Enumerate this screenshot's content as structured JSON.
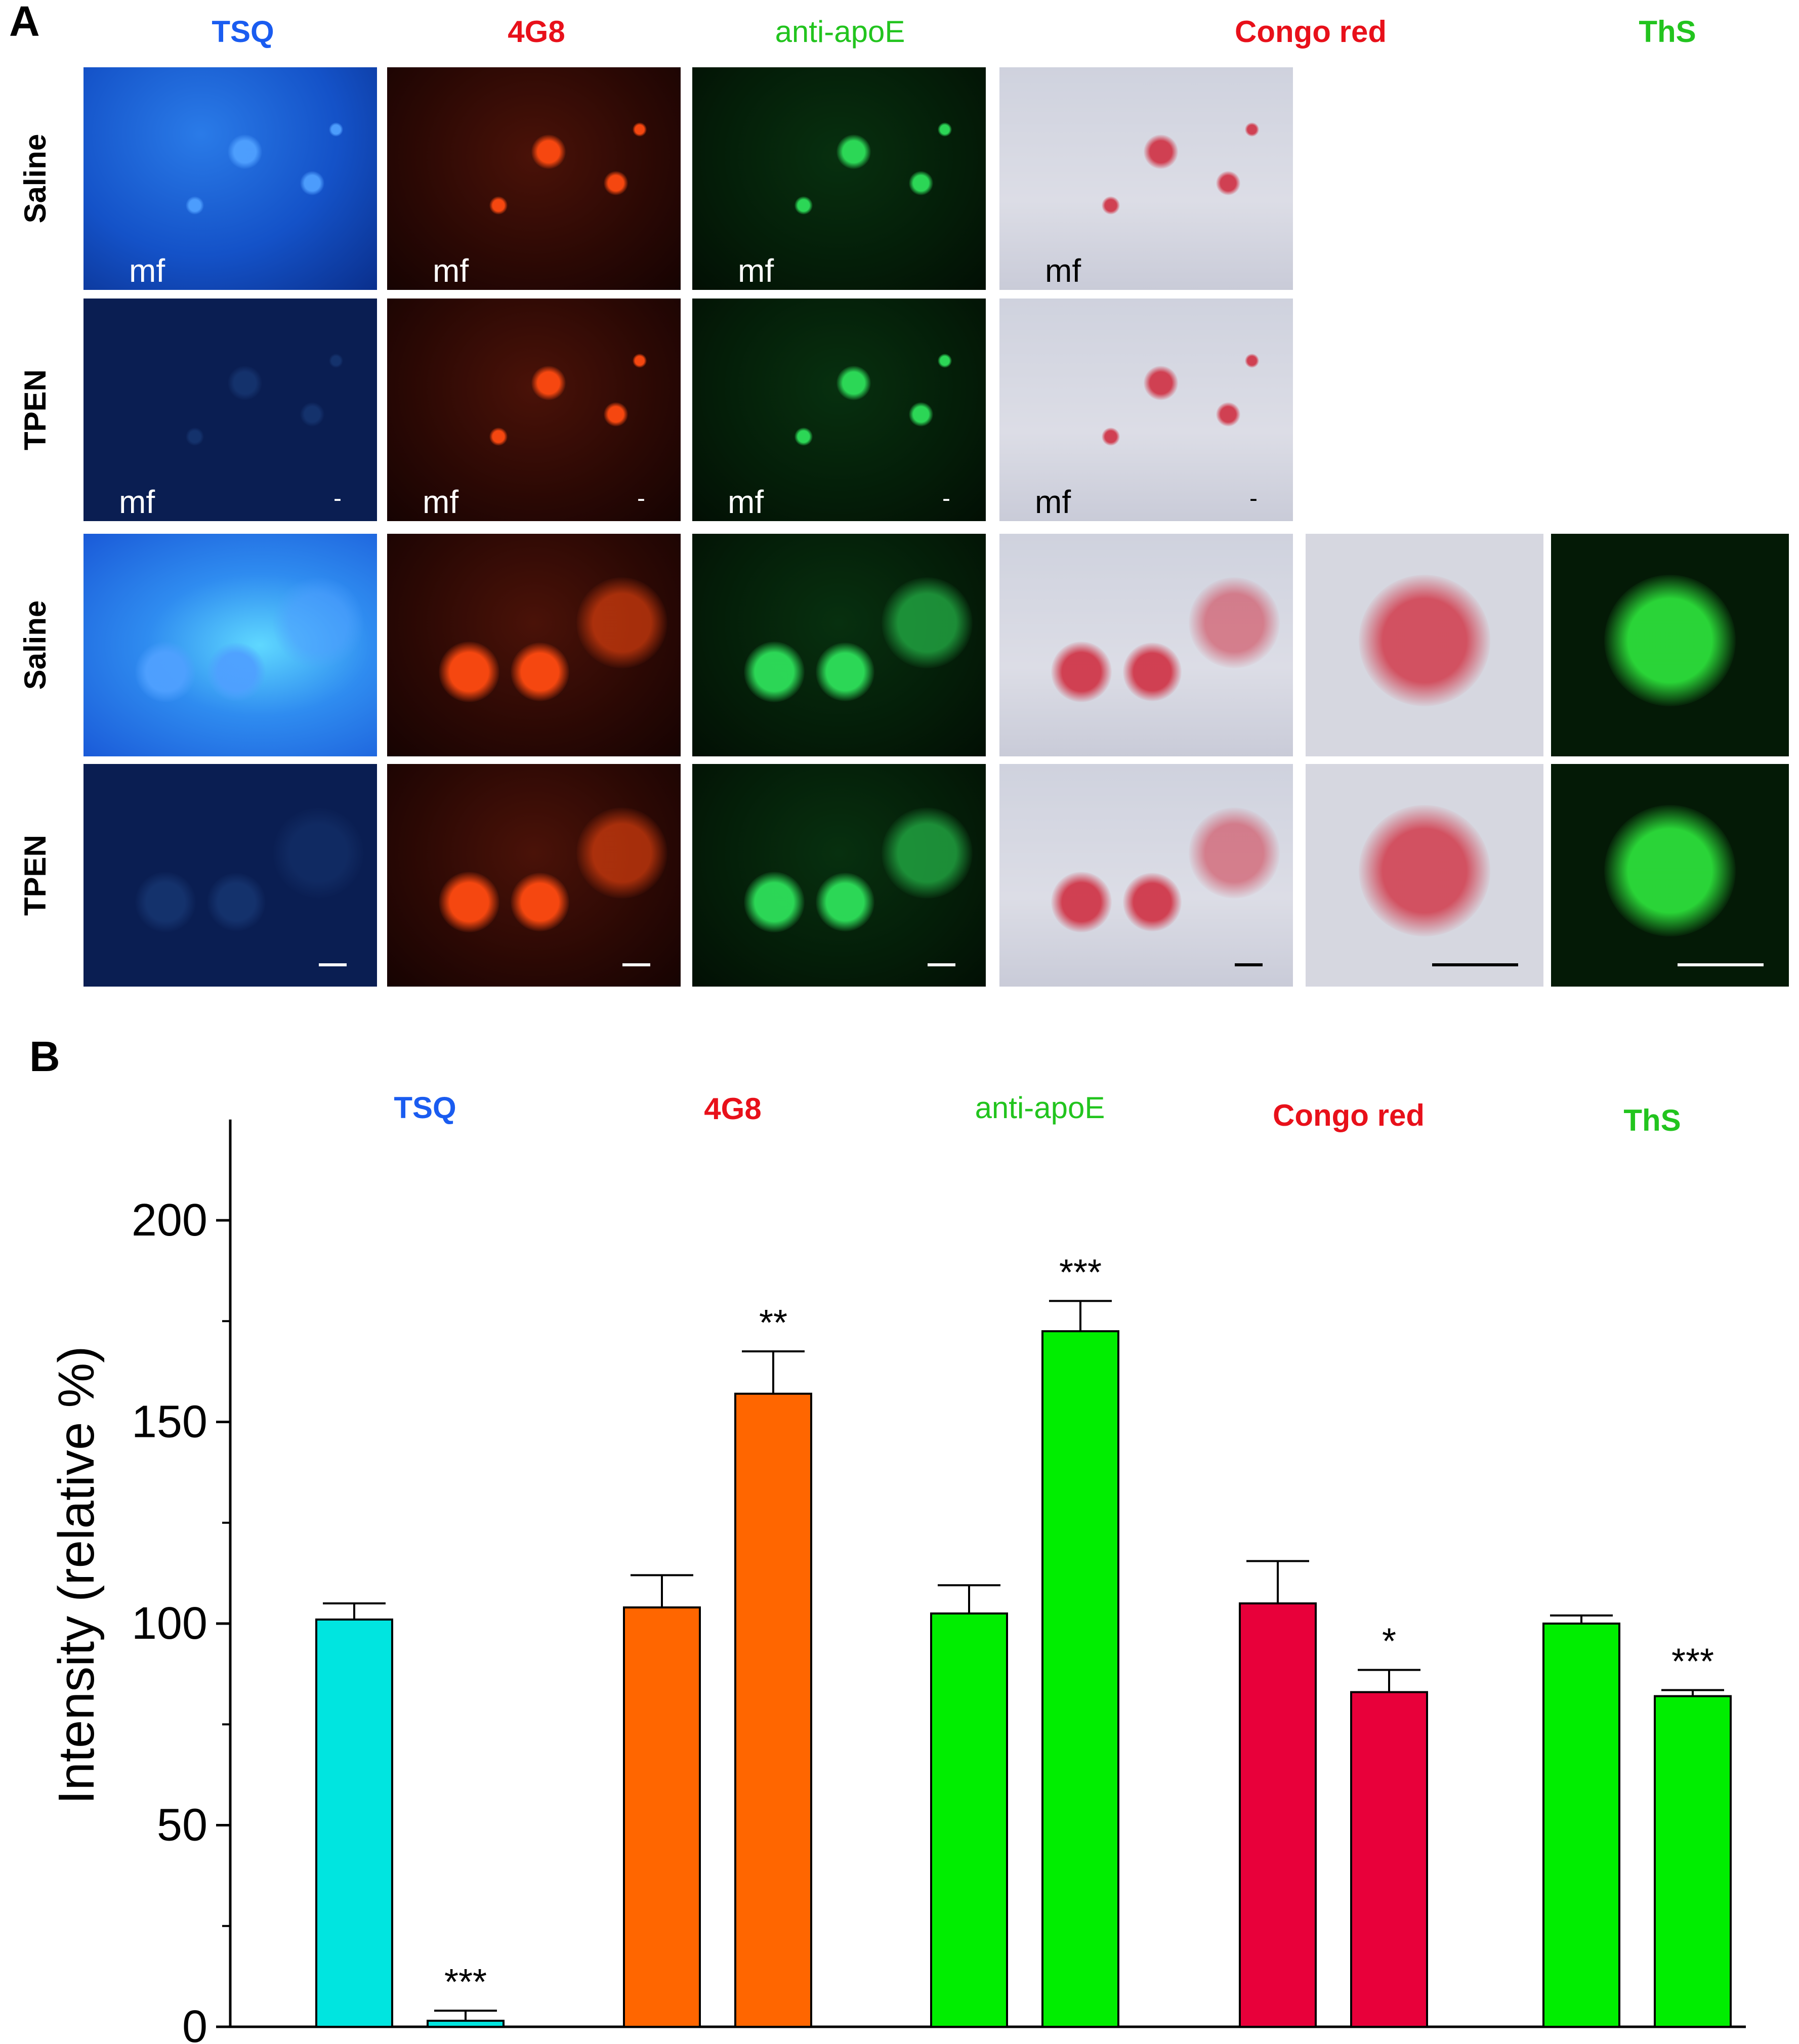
{
  "panel_a": {
    "letter": "A",
    "columns": [
      {
        "label": "TSQ",
        "color": "#1a5cf0",
        "weight": "bold"
      },
      {
        "label": "4G8",
        "color": "#e8101a",
        "weight": "bold"
      },
      {
        "label": "anti-apoE",
        "color": "#22c41e",
        "weight": "normal"
      },
      {
        "label": "Congo red",
        "color": "#e8101a",
        "weight": "bold"
      },
      {
        "label": "ThS",
        "color": "#22c41e",
        "weight": "bold"
      }
    ],
    "rows": [
      "Saline",
      "TPEN",
      "Saline",
      "TPEN"
    ],
    "region_label": "mf",
    "small_mark": "-"
  },
  "panel_b": {
    "letter": "B"
  },
  "chart_data": {
    "type": "bar",
    "ylabel": "Intensity (relative %)",
    "ylim": [
      0,
      225
    ],
    "yticks": [
      0,
      50,
      100,
      150,
      200
    ],
    "grid": false,
    "legend": "none",
    "groups": [
      {
        "label": "TSQ",
        "label_color": "#1a5cf0",
        "label_weight": "bold",
        "bar_color": "#00e5e0",
        "bars": [
          {
            "condition": "Saline",
            "value": 101,
            "error": 4,
            "sig": ""
          },
          {
            "condition": "TPEN",
            "value": 1.5,
            "error": 2.5,
            "sig": "***"
          }
        ]
      },
      {
        "label": "4G8",
        "label_color": "#e8101a",
        "label_weight": "bold",
        "bar_color": "#ff6600",
        "bars": [
          {
            "condition": "Saline",
            "value": 104,
            "error": 8,
            "sig": ""
          },
          {
            "condition": "TPEN",
            "value": 157,
            "error": 10.5,
            "sig": "**"
          }
        ]
      },
      {
        "label": "anti-apoE",
        "label_color": "#22c41e",
        "label_weight": "normal",
        "bar_color": "#00ee00",
        "bars": [
          {
            "condition": "Saline",
            "value": 102.5,
            "error": 7,
            "sig": ""
          },
          {
            "condition": "TPEN",
            "value": 172.5,
            "error": 7.5,
            "sig": "***"
          }
        ]
      },
      {
        "label": "Congo red",
        "label_color": "#e8101a",
        "label_weight": "bold",
        "bar_color": "#e8003a",
        "bars": [
          {
            "condition": "Saline",
            "value": 105,
            "error": 10.5,
            "sig": ""
          },
          {
            "condition": "TPEN",
            "value": 83,
            "error": 5.5,
            "sig": "*"
          }
        ]
      },
      {
        "label": "ThS",
        "label_color": "#22c41e",
        "label_weight": "bold",
        "bar_color": "#00ee00",
        "bars": [
          {
            "condition": "Saline",
            "value": 100,
            "error": 2,
            "sig": ""
          },
          {
            "condition": "TPEN",
            "value": 82,
            "error": 1.5,
            "sig": "***"
          }
        ]
      }
    ]
  }
}
